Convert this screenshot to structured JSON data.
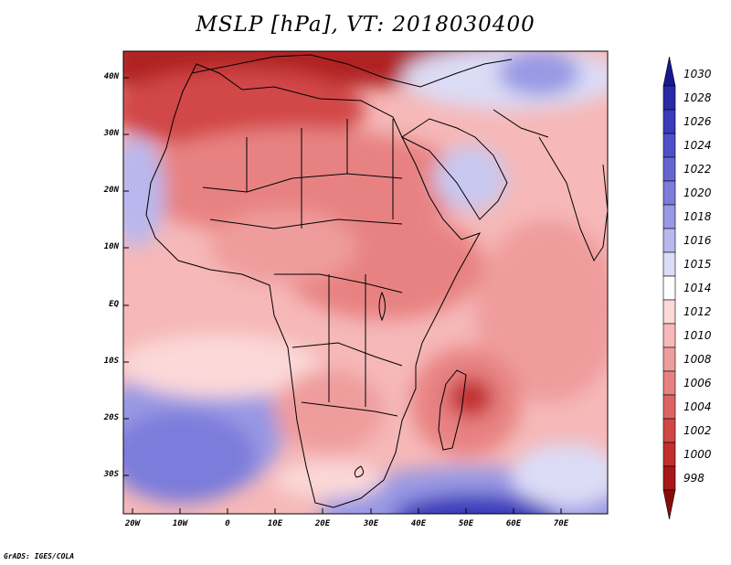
{
  "title": "MSLP [hPa], VT: 2018030400",
  "lat_labels": [
    "40N",
    "30N",
    "20N",
    "10N",
    "EQ",
    "10S",
    "20S",
    "30S"
  ],
  "lon_labels": [
    "20W",
    "10W",
    "0",
    "10E",
    "20E",
    "30E",
    "40E",
    "50E",
    "60E",
    "70E"
  ],
  "colorbar": {
    "levels": [
      "1030",
      "1028",
      "1026",
      "1024",
      "1022",
      "1020",
      "1018",
      "1016",
      "1015",
      "1014",
      "1012",
      "1010",
      "1008",
      "1006",
      "1004",
      "1002",
      "1000",
      "998"
    ],
    "colors": [
      "#181890",
      "#2a2aa8",
      "#3b3bbb",
      "#4f4fc8",
      "#6565d2",
      "#7c7cdc",
      "#9898e4",
      "#b8b8ee",
      "#dcdcf6",
      "#ffffff",
      "#fcd8d8",
      "#f6b8b8",
      "#ef9c9c",
      "#e88282",
      "#de6464",
      "#d24646",
      "#c22e2e",
      "#a81818",
      "#8a0a0a"
    ]
  },
  "credit": "GrADS: IGES/COLA"
}
